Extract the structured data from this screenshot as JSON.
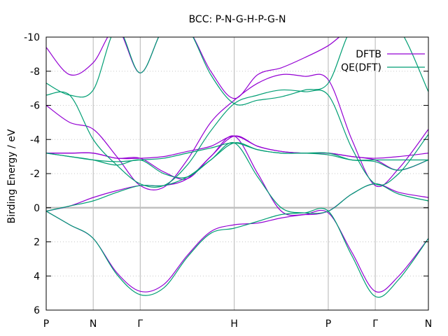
{
  "chart_data": {
    "type": "line",
    "title": "BCC: P-N-G-H-P-G-N",
    "xlabel": "",
    "ylabel": "Birding Energy / eV",
    "ylim": [
      6,
      -10
    ],
    "yticks": [
      -10,
      -8,
      -6,
      -4,
      -2,
      0,
      2,
      4,
      6
    ],
    "ytick_labels": [
      "-10",
      "-8",
      "-6",
      "-4",
      "-2",
      "0",
      "2",
      "4",
      "6"
    ],
    "xlim": [
      0,
      8.13
    ],
    "kpoints": [
      {
        "label": "P",
        "x": 0
      },
      {
        "label": "N",
        "x": 1.0
      },
      {
        "label": "Γ",
        "x": 2.0
      },
      {
        "label": "H",
        "x": 4.0
      },
      {
        "label": "P",
        "x": 6.0
      },
      {
        "label": "Γ",
        "x": 7.0
      },
      {
        "label": "N",
        "x": 8.13
      }
    ],
    "grid": true,
    "legend_position": "top-right",
    "zero_line": 0,
    "series": [
      {
        "name": "DFTB",
        "color": "#9400d3",
        "bands": [
          {
            "x": [
              0,
              0.5,
              1,
              1.5,
              2,
              2.5,
              3,
              3.5,
              4,
              4.5,
              5,
              5.5,
              6,
              6.5,
              7,
              7.5,
              8.13
            ],
            "y": [
              0.2,
              1.0,
              1.8,
              3.8,
              4.9,
              4.5,
              2.8,
              1.4,
              1.0,
              0.9,
              0.6,
              0.4,
              0.3,
              2.6,
              4.9,
              4.0,
              1.8
            ]
          },
          {
            "x": [
              0,
              0.5,
              1,
              1.5,
              2,
              2.5,
              3,
              3.5,
              4,
              4.5,
              5,
              5.5,
              6,
              6.5,
              7,
              7.5,
              8.13
            ],
            "y": [
              0.2,
              -0.1,
              -0.6,
              -1.0,
              -1.3,
              -1.3,
              -1.7,
              -3.0,
              -4.2,
              -2.0,
              0.2,
              0.4,
              0.2,
              -0.8,
              -1.4,
              -0.9,
              -0.6
            ]
          },
          {
            "x": [
              0,
              0.5,
              1,
              1.5,
              2,
              2.5,
              3,
              3.5,
              4,
              4.5,
              5,
              5.5,
              6,
              6.5,
              7,
              7.5,
              8.13
            ],
            "y": [
              -3.2,
              -3.2,
              -3.2,
              -2.9,
              -2.9,
              -2.1,
              -1.7,
              -3.0,
              -4.2,
              -3.6,
              -3.3,
              -3.2,
              -3.2,
              -3.0,
              -2.8,
              -2.2,
              -2.8
            ]
          },
          {
            "x": [
              0,
              0.5,
              1,
              1.5,
              2,
              2.5,
              3,
              3.5,
              4,
              4.5,
              5,
              5.5,
              6,
              6.5,
              7,
              7.5,
              8.13
            ],
            "y": [
              -3.2,
              -3.2,
              -3.2,
              -2.9,
              -2.9,
              -3.0,
              -3.3,
              -3.6,
              -4.2,
              -3.6,
              -3.3,
              -3.2,
              -3.2,
              -3.0,
              -2.9,
              -3.0,
              -3.2
            ]
          },
          {
            "x": [
              0,
              0.5,
              1,
              1.5,
              2,
              2.5,
              3,
              3.5,
              4,
              4.5,
              5,
              5.5,
              6,
              6.5,
              7,
              7.5,
              8.13
            ],
            "y": [
              -6.0,
              -5.0,
              -4.6,
              -3.0,
              -1.3,
              -1.2,
              -2.8,
              -5.0,
              -6.3,
              -7.3,
              -7.8,
              -7.7,
              -7.5,
              -4.0,
              -1.3,
              -2.3,
              -4.6
            ]
          },
          {
            "x": [
              0,
              0.5,
              1,
              1.5,
              2,
              2.5,
              3,
              3.5,
              4,
              4.5,
              5,
              5.5,
              6,
              6.5,
              7,
              7.5,
              8.13
            ],
            "y": [
              -9.4,
              -7.8,
              -8.5,
              -10.5,
              -7.9,
              -10.5,
              -10.5,
              -8.0,
              -6.4,
              -7.8,
              -8.2,
              -8.8,
              -9.5,
              -10.5,
              -10.5,
              -10.5,
              -10.0
            ]
          }
        ]
      },
      {
        "name": "QE(DFT)",
        "color": "#009e73",
        "bands": [
          {
            "x": [
              0,
              0.5,
              1,
              1.5,
              2,
              2.5,
              3,
              3.5,
              4,
              4.5,
              5,
              5.5,
              6,
              6.5,
              7,
              7.5,
              8.13
            ],
            "y": [
              0.2,
              1.0,
              1.8,
              3.9,
              5.1,
              4.7,
              2.9,
              1.5,
              1.2,
              0.8,
              0.4,
              0.3,
              0.2,
              2.8,
              5.2,
              4.2,
              1.8
            ]
          },
          {
            "x": [
              0,
              0.5,
              1,
              1.5,
              2,
              2.5,
              3,
              3.5,
              4,
              4.5,
              5,
              5.5,
              6,
              6.5,
              7,
              7.5,
              8.13
            ],
            "y": [
              0.2,
              -0.1,
              -0.4,
              -0.9,
              -1.3,
              -1.3,
              -1.8,
              -2.8,
              -3.8,
              -1.8,
              0.0,
              0.3,
              0.2,
              -0.8,
              -1.4,
              -0.8,
              -0.4
            ]
          },
          {
            "x": [
              0,
              0.5,
              1,
              1.5,
              2,
              2.5,
              3,
              3.5,
              4,
              4.5,
              5,
              5.5,
              6,
              6.5,
              7,
              7.5,
              8.13
            ],
            "y": [
              -3.2,
              -3.0,
              -2.8,
              -2.5,
              -2.8,
              -2.0,
              -1.8,
              -2.8,
              -3.8,
              -3.4,
              -3.2,
              -3.2,
              -3.2,
              -2.8,
              -2.7,
              -2.2,
              -2.8
            ]
          },
          {
            "x": [
              0,
              0.5,
              1,
              1.5,
              2,
              2.5,
              3,
              3.5,
              4,
              4.5,
              5,
              5.5,
              6,
              6.5,
              7,
              7.5,
              8.13
            ],
            "y": [
              -3.2,
              -3.0,
              -2.8,
              -2.7,
              -2.8,
              -2.9,
              -3.2,
              -3.5,
              -3.8,
              -3.4,
              -3.2,
              -3.2,
              -3.1,
              -2.8,
              -2.8,
              -2.8,
              -2.8
            ]
          },
          {
            "x": [
              0,
              0.5,
              1,
              1.5,
              2,
              2.5,
              3,
              3.5,
              4,
              4.5,
              5,
              5.5,
              6,
              6.5,
              7,
              7.5,
              8.13
            ],
            "y": [
              -6.6,
              -6.6,
              -4.0,
              -2.5,
              -1.4,
              -1.3,
              -2.5,
              -4.5,
              -6.1,
              -6.6,
              -6.9,
              -6.8,
              -6.6,
              -3.5,
              -1.4,
              -2.0,
              -4.3
            ]
          },
          {
            "x": [
              0,
              0.5,
              1,
              1.5,
              2,
              2.5,
              3,
              3.5,
              4,
              4.5,
              5,
              5.5,
              6,
              6.5,
              7,
              7.5,
              8.13
            ],
            "y": [
              -7.3,
              -6.6,
              -6.9,
              -10.5,
              -7.9,
              -10.5,
              -10.5,
              -7.8,
              -6.1,
              -6.3,
              -6.5,
              -6.9,
              -7.3,
              -10.5,
              -10.5,
              -10.5,
              -6.8
            ]
          }
        ]
      }
    ]
  }
}
